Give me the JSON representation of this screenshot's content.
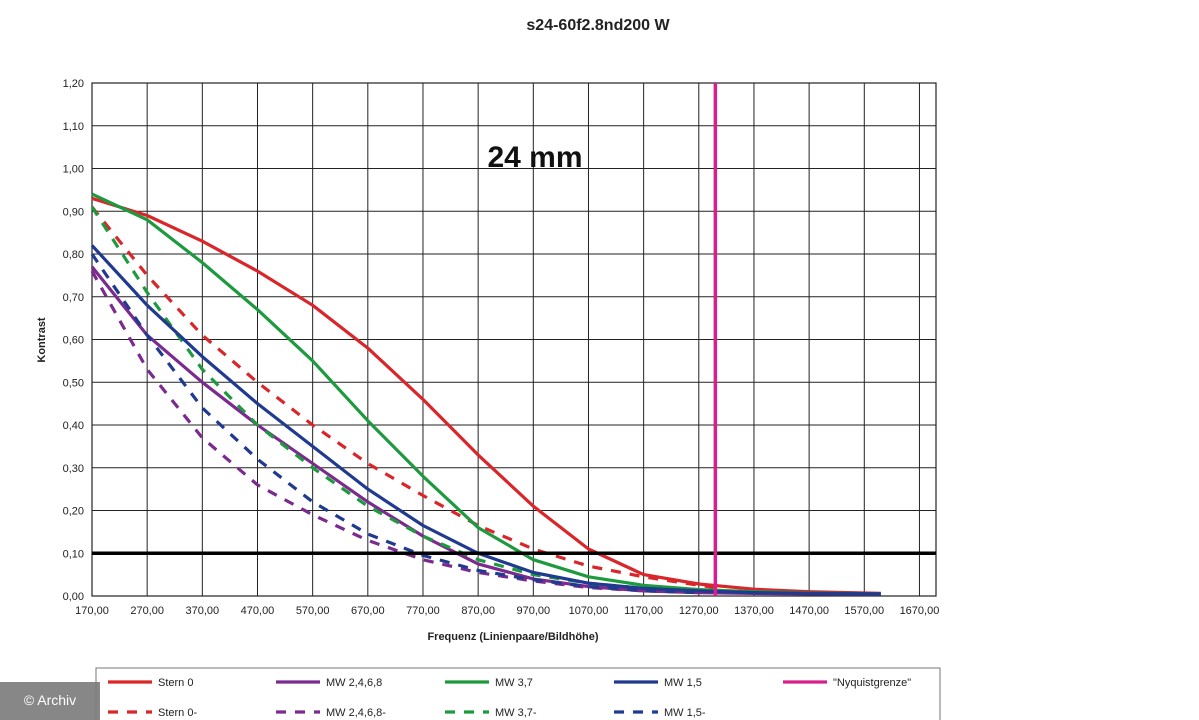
{
  "chart_data": {
    "type": "line",
    "title": "s24-60f2.8nd200 W",
    "annotation": "24 mm",
    "xlabel": "Frequenz (Linienpaare/Bildhöhe)",
    "ylabel": "Kontrast",
    "xlim": [
      170,
      1700
    ],
    "ylim": [
      0,
      1.2
    ],
    "x_ticks": [
      "170,00",
      "270,00",
      "370,00",
      "470,00",
      "570,00",
      "670,00",
      "770,00",
      "870,00",
      "970,00",
      "1070,00",
      "1170,00",
      "1270,00",
      "1370,00",
      "1470,00",
      "1570,00",
      "1670,00"
    ],
    "y_ticks": [
      "0,00",
      "0,10",
      "0,20",
      "0,30",
      "0,40",
      "0,50",
      "0,60",
      "0,70",
      "0,80",
      "0,90",
      "1,00",
      "1,10",
      "1,20"
    ],
    "grid": true,
    "reference_lines": [
      {
        "axis": "y",
        "value": 0.1,
        "color": "#000000"
      },
      {
        "axis": "x",
        "value": 1300,
        "color": "#d6218c",
        "series": "\"Nyquistgrenze\""
      }
    ],
    "legend_position": "bottom",
    "series": [
      {
        "name": "Stern 0",
        "color": "#d9262a",
        "dash": false,
        "points": [
          [
            170,
            0.93
          ],
          [
            270,
            0.89
          ],
          [
            370,
            0.83
          ],
          [
            470,
            0.76
          ],
          [
            570,
            0.68
          ],
          [
            670,
            0.58
          ],
          [
            770,
            0.46
          ],
          [
            870,
            0.33
          ],
          [
            970,
            0.21
          ],
          [
            1070,
            0.11
          ],
          [
            1170,
            0.05
          ],
          [
            1270,
            0.028
          ],
          [
            1370,
            0.016
          ],
          [
            1470,
            0.01
          ],
          [
            1600,
            0.006
          ]
        ]
      },
      {
        "name": "Stern 0-",
        "color": "#d9262a",
        "dash": true,
        "points": [
          [
            170,
            0.91
          ],
          [
            270,
            0.75
          ],
          [
            370,
            0.61
          ],
          [
            470,
            0.5
          ],
          [
            570,
            0.4
          ],
          [
            670,
            0.31
          ],
          [
            770,
            0.235
          ],
          [
            870,
            0.165
          ],
          [
            970,
            0.11
          ],
          [
            1070,
            0.07
          ],
          [
            1170,
            0.045
          ],
          [
            1270,
            0.025
          ],
          [
            1300,
            0.02
          ]
        ]
      },
      {
        "name": "MW 2,4,6,8",
        "color": "#7b2a8e",
        "dash": false,
        "points": [
          [
            170,
            0.77
          ],
          [
            270,
            0.61
          ],
          [
            370,
            0.5
          ],
          [
            470,
            0.4
          ],
          [
            570,
            0.31
          ],
          [
            670,
            0.22
          ],
          [
            770,
            0.14
          ],
          [
            870,
            0.075
          ],
          [
            970,
            0.04
          ],
          [
            1070,
            0.022
          ],
          [
            1170,
            0.012
          ],
          [
            1270,
            0.008
          ],
          [
            1370,
            0.006
          ],
          [
            1470,
            0.005
          ],
          [
            1600,
            0.004
          ]
        ]
      },
      {
        "name": "MW 2,4,6,8-",
        "color": "#7b2a8e",
        "dash": true,
        "points": [
          [
            170,
            0.76
          ],
          [
            270,
            0.53
          ],
          [
            370,
            0.37
          ],
          [
            470,
            0.26
          ],
          [
            570,
            0.19
          ],
          [
            670,
            0.13
          ],
          [
            770,
            0.085
          ],
          [
            870,
            0.055
          ],
          [
            970,
            0.035
          ],
          [
            1070,
            0.02
          ],
          [
            1170,
            0.012
          ],
          [
            1270,
            0.008
          ]
        ]
      },
      {
        "name": "MW 3,7",
        "color": "#1e9a3e",
        "dash": false,
        "points": [
          [
            170,
            0.94
          ],
          [
            270,
            0.88
          ],
          [
            370,
            0.78
          ],
          [
            470,
            0.67
          ],
          [
            570,
            0.55
          ],
          [
            670,
            0.41
          ],
          [
            770,
            0.28
          ],
          [
            870,
            0.16
          ],
          [
            970,
            0.085
          ],
          [
            1070,
            0.045
          ],
          [
            1170,
            0.025
          ],
          [
            1270,
            0.015
          ],
          [
            1370,
            0.01
          ],
          [
            1470,
            0.007
          ],
          [
            1600,
            0.005
          ]
        ]
      },
      {
        "name": "MW 3,7-",
        "color": "#1e9a3e",
        "dash": true,
        "points": [
          [
            170,
            0.91
          ],
          [
            270,
            0.71
          ],
          [
            370,
            0.53
          ],
          [
            470,
            0.4
          ],
          [
            570,
            0.3
          ],
          [
            670,
            0.21
          ],
          [
            770,
            0.14
          ],
          [
            870,
            0.085
          ],
          [
            970,
            0.05
          ],
          [
            1070,
            0.03
          ],
          [
            1170,
            0.018
          ],
          [
            1270,
            0.012
          ]
        ]
      },
      {
        "name": "MW 1,5",
        "color": "#1f3a8f",
        "dash": false,
        "points": [
          [
            170,
            0.82
          ],
          [
            270,
            0.68
          ],
          [
            370,
            0.56
          ],
          [
            470,
            0.45
          ],
          [
            570,
            0.35
          ],
          [
            670,
            0.25
          ],
          [
            770,
            0.165
          ],
          [
            870,
            0.1
          ],
          [
            970,
            0.055
          ],
          [
            1070,
            0.03
          ],
          [
            1170,
            0.018
          ],
          [
            1270,
            0.012
          ],
          [
            1370,
            0.008
          ],
          [
            1470,
            0.006
          ],
          [
            1600,
            0.005
          ]
        ]
      },
      {
        "name": "MW 1,5-",
        "color": "#1f3a8f",
        "dash": true,
        "points": [
          [
            170,
            0.8
          ],
          [
            270,
            0.61
          ],
          [
            370,
            0.44
          ],
          [
            470,
            0.32
          ],
          [
            570,
            0.22
          ],
          [
            670,
            0.145
          ],
          [
            770,
            0.095
          ],
          [
            870,
            0.06
          ],
          [
            970,
            0.038
          ],
          [
            1070,
            0.022
          ],
          [
            1170,
            0.013
          ],
          [
            1270,
            0.008
          ]
        ]
      }
    ]
  },
  "credit": "© Archiv"
}
